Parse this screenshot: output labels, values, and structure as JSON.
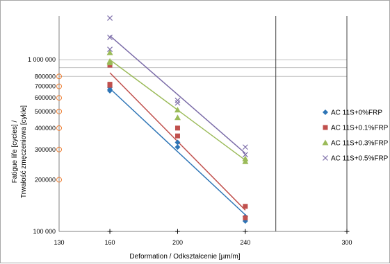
{
  "chart_data": {
    "type": "scatter",
    "xlabel": "Deformation / Odkształcenie [µm/m]",
    "ylabel_lines": [
      "Fatigue life [cycles] /",
      "Trwałość zmęczeniowa [cykle]"
    ],
    "x_ticks": [
      130,
      160,
      200,
      240,
      300
    ],
    "xlim": [
      130,
      300
    ],
    "ylim": [
      100000,
      1800000
    ],
    "y_scale": "log",
    "y_ticks": [
      {
        "value": 100000,
        "label": "100 000"
      },
      {
        "value": 200000,
        "label": "200000"
      },
      {
        "value": 300000,
        "label": "300000"
      },
      {
        "value": 400000,
        "label": "400000"
      },
      {
        "value": 500000,
        "label": "500000"
      },
      {
        "value": 600000,
        "label": "600000"
      },
      {
        "value": 700000,
        "label": "700000"
      },
      {
        "value": 800000,
        "label": "800000"
      },
      {
        "value": 1000000,
        "label": "1 000 000"
      }
    ],
    "gridlines_y": [
      100000,
      800000,
      900000,
      1000000
    ],
    "vertical_lines_x": [
      258,
      300
    ],
    "legend_position": "right",
    "series": [
      {
        "name": "AC 11S+0%FRP",
        "marker": "diamond",
        "color": "#2e75b6",
        "points": [
          [
            160,
            660000
          ],
          [
            160,
            670000
          ],
          [
            160,
            690000
          ],
          [
            200,
            310000
          ],
          [
            200,
            330000
          ],
          [
            240,
            115000
          ],
          [
            240,
            122000
          ]
        ],
        "trend": [
          [
            160,
            680000
          ],
          [
            240,
            125000
          ]
        ]
      },
      {
        "name": "AC 11S+0.1%FRP",
        "marker": "square",
        "color": "#c0504d",
        "points": [
          [
            160,
            710000
          ],
          [
            160,
            720000
          ],
          [
            160,
            930000
          ],
          [
            200,
            360000
          ],
          [
            200,
            400000
          ],
          [
            240,
            120000
          ],
          [
            240,
            140000
          ]
        ],
        "trend": [
          [
            160,
            840000
          ],
          [
            240,
            133000
          ]
        ]
      },
      {
        "name": "AC 11S+0.3%FRP",
        "marker": "triangle",
        "color": "#9bbb59",
        "points": [
          [
            160,
            960000
          ],
          [
            160,
            980000
          ],
          [
            160,
            1100000
          ],
          [
            200,
            460000
          ],
          [
            200,
            510000
          ],
          [
            240,
            255000
          ],
          [
            240,
            265000
          ]
        ],
        "trend": [
          [
            160,
            1000000
          ],
          [
            240,
            260000
          ]
        ]
      },
      {
        "name": "AC 11S+0.5%FRP",
        "marker": "x",
        "color": "#7b6ca8",
        "points": [
          [
            160,
            1150000
          ],
          [
            160,
            1350000
          ],
          [
            160,
            1750000
          ],
          [
            200,
            560000
          ],
          [
            200,
            580000
          ],
          [
            240,
            280000
          ],
          [
            240,
            310000
          ]
        ],
        "trend": [
          [
            160,
            1380000
          ],
          [
            240,
            285000
          ]
        ]
      }
    ],
    "extra_markers": {
      "circles_axis": {
        "x": 130,
        "color": "#ed7d31",
        "values": [
          200000,
          300000,
          400000,
          500000,
          600000,
          700000,
          800000
        ]
      },
      "plus_bottom": {
        "y": 100000,
        "x": [
          160,
          200,
          240,
          300
        ]
      }
    }
  }
}
